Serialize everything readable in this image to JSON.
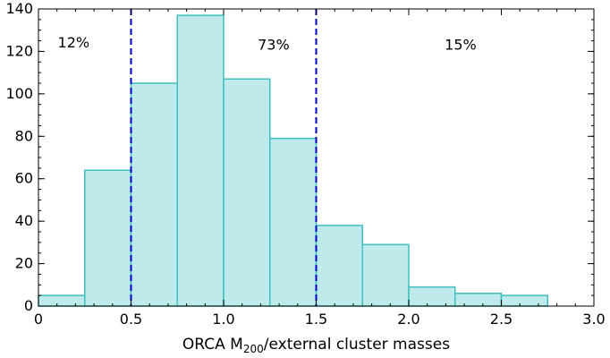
{
  "chart_data": {
    "type": "bar",
    "bin_edges": [
      0.0,
      0.25,
      0.5,
      0.75,
      1.0,
      1.25,
      1.5,
      1.75,
      2.0,
      2.25,
      2.5,
      2.75
    ],
    "values": [
      5,
      64,
      105,
      137,
      107,
      79,
      38,
      29,
      9,
      6,
      5
    ],
    "xlim": [
      0.0,
      3.0
    ],
    "ylim": [
      0,
      140
    ],
    "xticks": [
      "0",
      "0.5",
      "1.0",
      "1.5",
      "2.0",
      "2.5",
      "3.0"
    ],
    "yticks": [
      "0",
      "20",
      "40",
      "60",
      "80",
      "100",
      "120",
      "140"
    ],
    "xlabel_prefix": "ORCA M",
    "xlabel_subscript": "200",
    "xlabel_suffix": "/external cluster masses",
    "ylabel": "",
    "vlines": [
      0.5,
      1.5
    ],
    "annotations": [
      {
        "text": "12%",
        "x": 0.19,
        "y": 124
      },
      {
        "text": "73%",
        "x": 1.27,
        "y": 123
      },
      {
        "text": "15%",
        "x": 2.28,
        "y": 123
      }
    ],
    "colors": {
      "bar_fill": "#bfeaec",
      "bar_edge": "#3fbfbf",
      "vline": "#0000cc"
    }
  }
}
